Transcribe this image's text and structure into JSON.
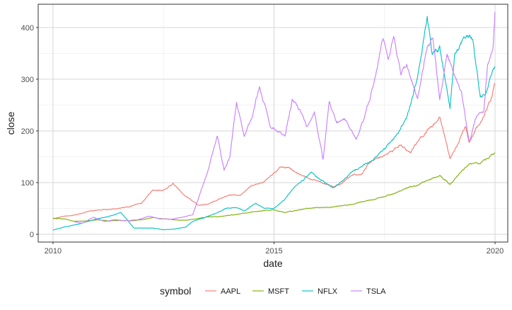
{
  "chart_data": {
    "type": "line",
    "title": "",
    "xlabel": "date",
    "ylabel": "close",
    "x_scale": "date",
    "xlim": [
      "2009-09-01",
      "2020-04-15"
    ],
    "ylim": [
      -15,
      445
    ],
    "x_ticks": [
      {
        "value": "2010-01-01",
        "label": "2010"
      },
      {
        "value": "2015-01-01",
        "label": "2015"
      },
      {
        "value": "2020-01-01",
        "label": "2020"
      }
    ],
    "y_ticks": [
      0,
      100,
      200,
      300,
      400
    ],
    "grid": true,
    "legend": {
      "title": "symbol",
      "position": "bottom"
    },
    "series": [
      {
        "name": "AAPL",
        "color": "#F8766D",
        "points": [
          [
            "2010-01-01",
            30
          ],
          [
            "2010-04-01",
            35
          ],
          [
            "2010-07-01",
            37
          ],
          [
            "2010-10-01",
            43
          ],
          [
            "2011-01-01",
            47
          ],
          [
            "2011-04-01",
            48
          ],
          [
            "2011-07-01",
            50
          ],
          [
            "2011-10-01",
            54
          ],
          [
            "2012-01-01",
            60
          ],
          [
            "2012-04-01",
            85
          ],
          [
            "2012-07-01",
            85
          ],
          [
            "2012-09-20",
            98
          ],
          [
            "2012-12-01",
            80
          ],
          [
            "2013-04-15",
            56
          ],
          [
            "2013-07-01",
            58
          ],
          [
            "2013-10-01",
            68
          ],
          [
            "2014-01-01",
            76
          ],
          [
            "2014-04-01",
            76
          ],
          [
            "2014-07-01",
            95
          ],
          [
            "2014-10-01",
            100
          ],
          [
            "2015-02-15",
            128
          ],
          [
            "2015-05-01",
            130
          ],
          [
            "2015-08-01",
            115
          ],
          [
            "2015-10-01",
            110
          ],
          [
            "2016-01-01",
            102
          ],
          [
            "2016-05-15",
            92
          ],
          [
            "2016-07-01",
            96
          ],
          [
            "2016-10-01",
            114
          ],
          [
            "2017-01-01",
            118
          ],
          [
            "2017-03-01",
            140
          ],
          [
            "2017-06-01",
            150
          ],
          [
            "2017-09-01",
            160
          ],
          [
            "2017-11-01",
            172
          ],
          [
            "2018-02-01",
            160
          ],
          [
            "2018-05-01",
            188
          ],
          [
            "2018-08-01",
            210
          ],
          [
            "2018-10-01",
            228
          ],
          [
            "2018-12-25",
            146
          ],
          [
            "2019-03-01",
            175
          ],
          [
            "2019-05-01",
            210
          ],
          [
            "2019-06-01",
            178
          ],
          [
            "2019-08-01",
            205
          ],
          [
            "2019-10-01",
            230
          ],
          [
            "2019-12-01",
            265
          ],
          [
            "2019-12-31",
            292
          ]
        ]
      },
      {
        "name": "MSFT",
        "color": "#7CAE00",
        "points": [
          [
            "2010-01-01",
            31
          ],
          [
            "2010-04-01",
            30
          ],
          [
            "2010-07-01",
            25
          ],
          [
            "2010-10-01",
            26
          ],
          [
            "2011-01-01",
            28
          ],
          [
            "2011-04-01",
            26
          ],
          [
            "2011-07-01",
            27
          ],
          [
            "2011-10-01",
            26
          ],
          [
            "2012-01-01",
            28
          ],
          [
            "2012-04-01",
            32
          ],
          [
            "2012-07-01",
            30
          ],
          [
            "2012-10-01",
            28
          ],
          [
            "2013-01-01",
            27
          ],
          [
            "2013-04-01",
            30
          ],
          [
            "2013-07-01",
            34
          ],
          [
            "2013-10-01",
            34
          ],
          [
            "2014-01-01",
            37
          ],
          [
            "2014-04-01",
            40
          ],
          [
            "2014-07-01",
            43
          ],
          [
            "2014-10-01",
            46
          ],
          [
            "2015-01-01",
            47
          ],
          [
            "2015-04-01",
            42
          ],
          [
            "2015-07-01",
            46
          ],
          [
            "2015-10-01",
            50
          ],
          [
            "2016-01-01",
            52
          ],
          [
            "2016-04-01",
            52
          ],
          [
            "2016-07-01",
            55
          ],
          [
            "2016-10-01",
            58
          ],
          [
            "2017-01-01",
            63
          ],
          [
            "2017-04-01",
            67
          ],
          [
            "2017-07-01",
            73
          ],
          [
            "2017-10-01",
            80
          ],
          [
            "2018-01-01",
            90
          ],
          [
            "2018-04-01",
            95
          ],
          [
            "2018-07-01",
            105
          ],
          [
            "2018-10-01",
            114
          ],
          [
            "2018-12-25",
            97
          ],
          [
            "2019-03-01",
            115
          ],
          [
            "2019-06-01",
            135
          ],
          [
            "2019-09-01",
            138
          ],
          [
            "2019-12-31",
            158
          ]
        ]
      },
      {
        "name": "NFLX",
        "color": "#00BFC4",
        "points": [
          [
            "2010-01-01",
            8
          ],
          [
            "2010-04-01",
            14
          ],
          [
            "2010-07-01",
            18
          ],
          [
            "2010-10-01",
            24
          ],
          [
            "2011-01-01",
            30
          ],
          [
            "2011-04-01",
            34
          ],
          [
            "2011-07-15",
            42
          ],
          [
            "2011-09-01",
            30
          ],
          [
            "2011-11-01",
            12
          ],
          [
            "2012-01-01",
            12
          ],
          [
            "2012-04-01",
            12
          ],
          [
            "2012-07-01",
            9
          ],
          [
            "2012-10-01",
            10
          ],
          [
            "2013-01-01",
            14
          ],
          [
            "2013-03-01",
            25
          ],
          [
            "2013-06-01",
            32
          ],
          [
            "2013-09-01",
            40
          ],
          [
            "2013-12-01",
            50
          ],
          [
            "2014-03-01",
            52
          ],
          [
            "2014-05-01",
            45
          ],
          [
            "2014-08-01",
            60
          ],
          [
            "2014-10-15",
            50
          ],
          [
            "2015-01-01",
            50
          ],
          [
            "2015-04-01",
            68
          ],
          [
            "2015-07-01",
            95
          ],
          [
            "2015-09-01",
            105
          ],
          [
            "2015-11-01",
            120
          ],
          [
            "2016-01-01",
            110
          ],
          [
            "2016-05-01",
            90
          ],
          [
            "2016-07-01",
            100
          ],
          [
            "2016-10-01",
            120
          ],
          [
            "2017-01-01",
            132
          ],
          [
            "2017-04-01",
            145
          ],
          [
            "2017-07-01",
            165
          ],
          [
            "2017-10-01",
            188
          ],
          [
            "2018-01-01",
            225
          ],
          [
            "2018-04-01",
            305
          ],
          [
            "2018-06-20",
            418
          ],
          [
            "2018-08-01",
            350
          ],
          [
            "2018-10-01",
            360
          ],
          [
            "2018-12-25",
            245
          ],
          [
            "2019-02-01",
            345
          ],
          [
            "2019-05-01",
            385
          ],
          [
            "2019-07-01",
            375
          ],
          [
            "2019-09-01",
            265
          ],
          [
            "2019-10-15",
            270
          ],
          [
            "2019-12-01",
            310
          ],
          [
            "2019-12-31",
            325
          ]
        ]
      },
      {
        "name": "TSLA",
        "color": "#C77CFF",
        "points": [
          [
            "2010-06-29",
            24
          ],
          [
            "2010-09-01",
            21
          ],
          [
            "2010-12-01",
            33
          ],
          [
            "2011-03-01",
            25
          ],
          [
            "2011-06-01",
            28
          ],
          [
            "2011-09-01",
            26
          ],
          [
            "2011-12-01",
            28
          ],
          [
            "2012-03-01",
            35
          ],
          [
            "2012-06-01",
            30
          ],
          [
            "2012-09-01",
            29
          ],
          [
            "2012-12-01",
            33
          ],
          [
            "2013-03-01",
            38
          ],
          [
            "2013-05-01",
            80
          ],
          [
            "2013-07-01",
            120
          ],
          [
            "2013-09-20",
            190
          ],
          [
            "2013-11-15",
            125
          ],
          [
            "2014-01-01",
            150
          ],
          [
            "2014-02-25",
            255
          ],
          [
            "2014-05-01",
            190
          ],
          [
            "2014-07-01",
            225
          ],
          [
            "2014-09-03",
            285
          ],
          [
            "2014-12-01",
            210
          ],
          [
            "2015-02-01",
            200
          ],
          [
            "2015-04-01",
            190
          ],
          [
            "2015-06-01",
            260
          ],
          [
            "2015-08-01",
            240
          ],
          [
            "2015-10-01",
            210
          ],
          [
            "2015-12-01",
            235
          ],
          [
            "2016-02-10",
            145
          ],
          [
            "2016-04-01",
            255
          ],
          [
            "2016-06-01",
            215
          ],
          [
            "2016-08-01",
            225
          ],
          [
            "2016-11-10",
            185
          ],
          [
            "2017-01-01",
            215
          ],
          [
            "2017-03-01",
            260
          ],
          [
            "2017-04-15",
            300
          ],
          [
            "2017-06-20",
            383
          ],
          [
            "2017-08-01",
            340
          ],
          [
            "2017-09-15",
            380
          ],
          [
            "2017-11-15",
            310
          ],
          [
            "2018-01-01",
            330
          ],
          [
            "2018-04-01",
            260
          ],
          [
            "2018-06-20",
            365
          ],
          [
            "2018-08-07",
            379
          ],
          [
            "2018-10-01",
            260
          ],
          [
            "2018-12-01",
            350
          ],
          [
            "2019-02-01",
            310
          ],
          [
            "2019-04-01",
            270
          ],
          [
            "2019-06-03",
            178
          ],
          [
            "2019-08-01",
            230
          ],
          [
            "2019-10-01",
            240
          ],
          [
            "2019-11-01",
            330
          ],
          [
            "2019-12-15",
            360
          ],
          [
            "2019-12-31",
            430
          ]
        ]
      }
    ]
  }
}
